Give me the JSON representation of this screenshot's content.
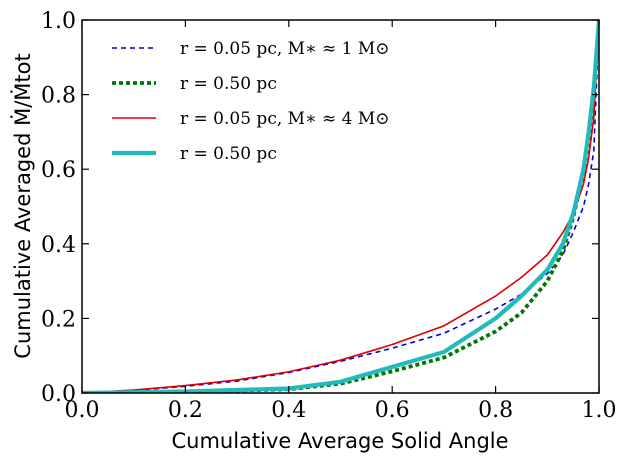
{
  "chart_data": {
    "type": "line",
    "xlabel": "Cumulative Average Solid Angle",
    "ylabel": "Cumulative Averaged Ṁ/Ṁtot",
    "xlim": [
      0.0,
      1.0
    ],
    "ylim": [
      0.0,
      1.0
    ],
    "x_ticks": [
      "0.0",
      "0.2",
      "0.4",
      "0.6",
      "0.8",
      "1.0"
    ],
    "y_ticks": [
      "0.0",
      "0.2",
      "0.4",
      "0.6",
      "0.8",
      "1.0"
    ],
    "grid": false,
    "legend_position": "top-left",
    "series": [
      {
        "name": "r = 0.05 pc, M∗ ≈ 1 M⊙",
        "color": "#0000cc",
        "style": "dashed",
        "x": [
          0.0,
          0.1,
          0.2,
          0.3,
          0.4,
          0.5,
          0.6,
          0.7,
          0.8,
          0.85,
          0.9,
          0.93,
          0.95,
          0.97,
          0.98,
          0.99,
          1.0
        ],
        "y": [
          0.0,
          0.007,
          0.018,
          0.032,
          0.055,
          0.085,
          0.12,
          0.16,
          0.225,
          0.265,
          0.32,
          0.37,
          0.43,
          0.5,
          0.56,
          0.65,
          1.0
        ]
      },
      {
        "name": "r = 0.50 pc",
        "color": "#007700",
        "style": "dotted-thick",
        "x": [
          0.0,
          0.2,
          0.4,
          0.5,
          0.6,
          0.7,
          0.8,
          0.85,
          0.9,
          0.93,
          0.95,
          0.97,
          0.98,
          0.99,
          1.0
        ],
        "y": [
          0.0,
          0.003,
          0.01,
          0.025,
          0.058,
          0.095,
          0.165,
          0.215,
          0.3,
          0.38,
          0.47,
          0.59,
          0.68,
          0.8,
          1.0
        ]
      },
      {
        "name": "r = 0.05 pc, M∗ ≈ 4 M⊙",
        "color": "#dd0000",
        "style": "solid",
        "x": [
          0.0,
          0.1,
          0.2,
          0.3,
          0.4,
          0.5,
          0.6,
          0.7,
          0.8,
          0.85,
          0.9,
          0.93,
          0.95,
          0.97,
          0.98,
          0.99,
          1.0
        ],
        "y": [
          0.0,
          0.008,
          0.02,
          0.035,
          0.057,
          0.088,
          0.13,
          0.18,
          0.26,
          0.31,
          0.37,
          0.43,
          0.48,
          0.56,
          0.63,
          0.74,
          1.0
        ]
      },
      {
        "name": "r = 0.50 pc",
        "color": "#22bbbb",
        "style": "solid-thick",
        "x": [
          0.0,
          0.2,
          0.4,
          0.5,
          0.6,
          0.7,
          0.8,
          0.85,
          0.9,
          0.93,
          0.95,
          0.97,
          0.98,
          0.99,
          1.0
        ],
        "y": [
          0.0,
          0.004,
          0.012,
          0.03,
          0.07,
          0.11,
          0.2,
          0.26,
          0.33,
          0.4,
          0.48,
          0.6,
          0.7,
          0.82,
          1.0
        ]
      }
    ]
  }
}
